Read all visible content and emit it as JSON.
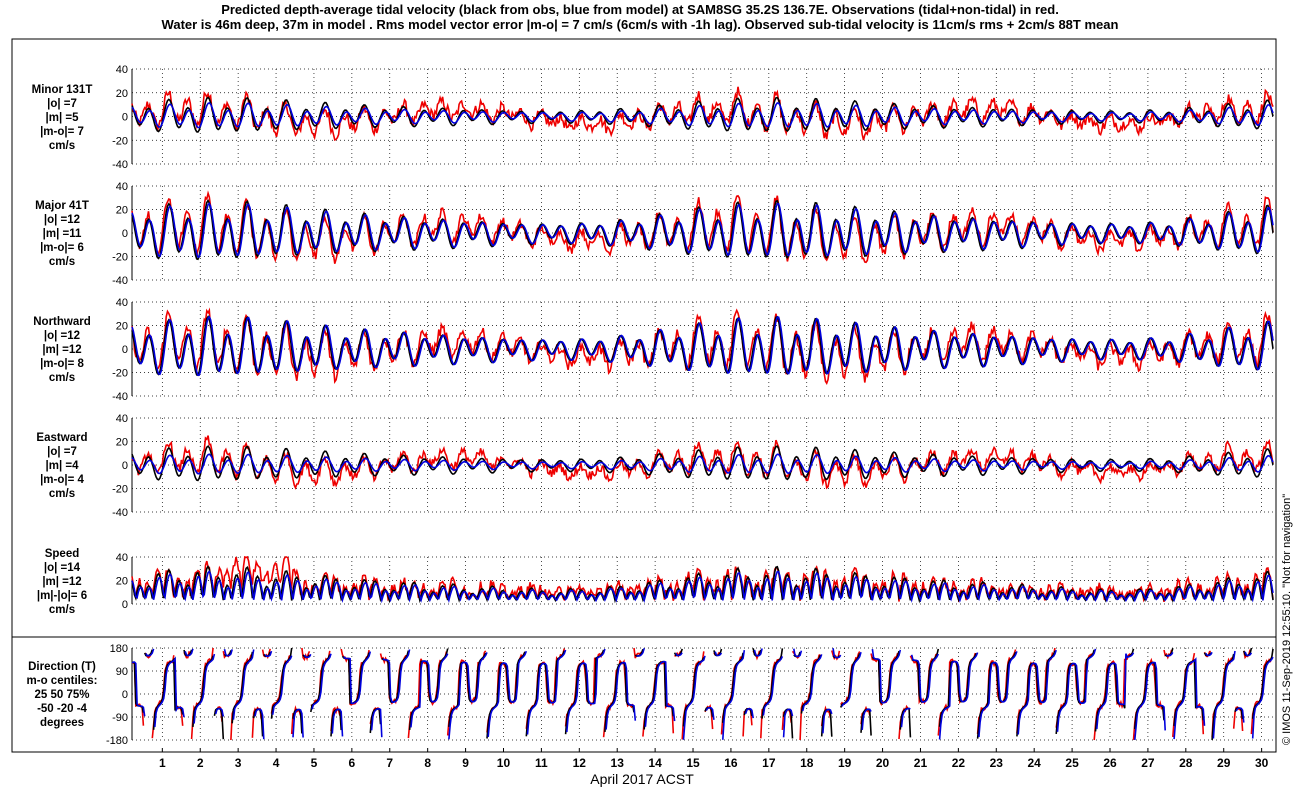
{
  "title_lines": [
    "Predicted depth-average tidal velocity (black from obs, blue from model) at SAM8SG 35.2S 136.7E. Observations (tidal+non-tidal) in red.",
    "Water is 46m deep, 37m in model . Rms model vector error |m-o| = 7 cm/s (6cm/s with -1h lag). Observed sub-tidal velocity is 11cm/s rms + 2cm/s 88T mean"
  ],
  "xlabel": "April 2017 ACST",
  "credit": "© IMOS 11-Sep-2019 12:55:10. \"Not for navigation\"",
  "colors": {
    "observed_tidal": "#000000",
    "model": "#0000dd",
    "observations": "#ee0000"
  },
  "chart_data": {
    "type": "line",
    "x_ticks": [
      "1",
      "2",
      "3",
      "4",
      "5",
      "6",
      "7",
      "8",
      "9",
      "10",
      "11",
      "12",
      "13",
      "14",
      "15",
      "16",
      "17",
      "18",
      "19",
      "20",
      "21",
      "22",
      "23",
      "24",
      "25",
      "26",
      "27",
      "28",
      "29",
      "30"
    ],
    "x_range_days": [
      0.2,
      30.3
    ],
    "series_legend": [
      "black from obs",
      "blue from model",
      "Observations (tidal+non-tidal) in red"
    ],
    "panels": [
      {
        "id": "minor",
        "label_lines": [
          "Minor 131T",
          "|o| =7",
          "|m| =5",
          "|m-o|= 7",
          "cm/s"
        ],
        "ylim": [
          -40,
          40
        ],
        "yticks": [
          "40",
          "20",
          "0",
          "-20",
          "-40"
        ],
        "amp_obs": 7,
        "amp_model": 5,
        "noise": 5
      },
      {
        "id": "major",
        "label_lines": [
          "Major 41T",
          "|o| =12",
          "|m| =11",
          "|m-o|= 6",
          "cm/s"
        ],
        "ylim": [
          -40,
          40
        ],
        "yticks": [
          "40",
          "20",
          "0",
          "-20",
          "-40"
        ],
        "amp_obs": 12,
        "amp_model": 11,
        "noise": 4
      },
      {
        "id": "north",
        "label_lines": [
          "Northward",
          "|o| =12",
          "|m| =12",
          "|m-o|= 8",
          "cm/s"
        ],
        "ylim": [
          -40,
          40
        ],
        "yticks": [
          "40",
          "20",
          "0",
          "-20",
          "-40"
        ],
        "amp_obs": 12,
        "amp_model": 12,
        "noise": 5
      },
      {
        "id": "east",
        "label_lines": [
          "Eastward",
          "|o| =7",
          "|m| =4",
          "|m-o|= 4",
          "cm/s"
        ],
        "ylim": [
          -40,
          40
        ],
        "yticks": [
          "40",
          "20",
          "0",
          "-20",
          "-40"
        ],
        "amp_obs": 7,
        "amp_model": 4,
        "noise": 4
      },
      {
        "id": "speed",
        "label_lines": [
          "Speed",
          "|o| =14",
          "|m| =12",
          "|m|-|o|= 6",
          "cm/s"
        ],
        "ylim": [
          0,
          40
        ],
        "yticks": [
          "40",
          "20",
          "0"
        ],
        "amp_obs": 14,
        "amp_model": 12,
        "noise": 4
      },
      {
        "id": "direction",
        "label_lines": [
          "Direction (T)",
          "m-o centiles:",
          "25  50  75%",
          "-50 -20  -4",
          "degrees"
        ],
        "ylim": [
          -180,
          180
        ],
        "yticks": [
          "180",
          "90",
          "0",
          "-90",
          "-180"
        ],
        "centiles": [
          -50,
          -20,
          -4
        ]
      }
    ]
  }
}
